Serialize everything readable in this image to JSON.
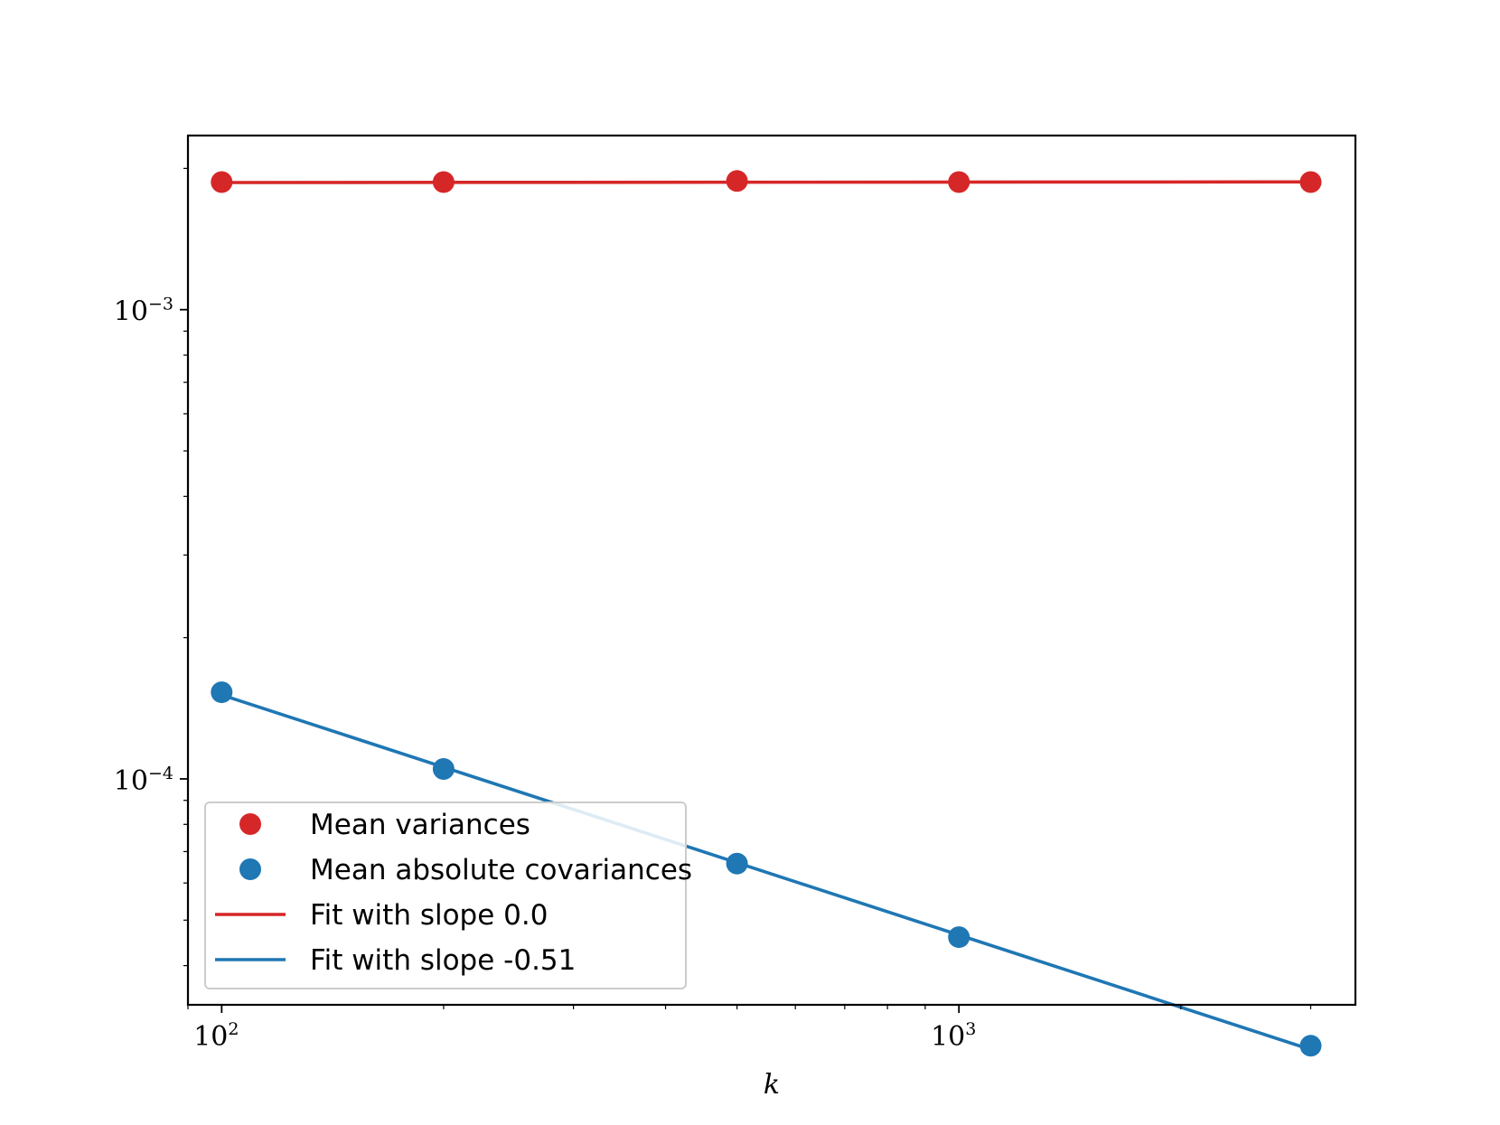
{
  "chart_data": {
    "type": "line",
    "xlabel": "k",
    "ylabel": "",
    "xscale": "log",
    "yscale": "log",
    "xlim": [
      90,
      3450
    ],
    "ylim": [
      3.3e-05,
      0.00235
    ],
    "grid": false,
    "legend_location": "lower-left",
    "x_ticks": [
      {
        "value": 100,
        "base": "10",
        "exp": "2"
      },
      {
        "value": 1000,
        "base": "10",
        "exp": "3"
      }
    ],
    "y_ticks": [
      {
        "value": 0.0001,
        "base": "10",
        "exp": "−4"
      },
      {
        "value": 0.001,
        "base": "10",
        "exp": "−3"
      }
    ],
    "series": [
      {
        "name": "Mean variances",
        "kind": "scatter",
        "color": "#d62728",
        "x": [
          100,
          200,
          500,
          1000,
          3000
        ],
        "y": [
          0.00187,
          0.00187,
          0.00188,
          0.00187,
          0.00187
        ]
      },
      {
        "name": "Mean absolute covariances",
        "kind": "scatter",
        "color": "#1f77b4",
        "x": [
          100,
          200,
          500,
          1000,
          3000
        ],
        "y": [
          0.000153,
          0.000105,
          6.6e-05,
          4.6e-05,
          2.7e-05
        ]
      },
      {
        "name": "Fit with slope 0.0",
        "kind": "line",
        "color": "#d62728",
        "x": [
          100,
          3000
        ],
        "y": [
          0.001866,
          0.001872
        ]
      },
      {
        "name": "Fit with slope -0.51",
        "kind": "line",
        "color": "#1f77b4",
        "x": [
          100,
          3000
        ],
        "y": [
          0.000151,
          2.65e-05
        ]
      }
    ]
  }
}
